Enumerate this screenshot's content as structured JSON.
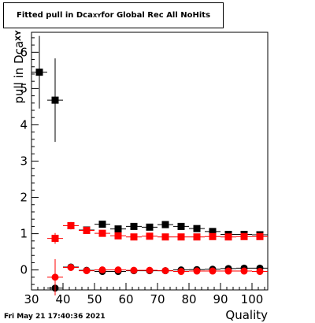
{
  "title": {
    "prefix": "Fitted pull in Dca",
    "subscript": "XY",
    "suffix": " for Global Rec All NoHits"
  },
  "timestamp": "Fri May 21 17:40:36 2021",
  "chart_data": {
    "type": "scatter",
    "title": "Fitted pull in Dca_XY for Global Rec All NoHits",
    "xlabel": "Quality",
    "ylabel_main": "pull in Dca",
    "ylabel_sub": "XY",
    "xlim": [
      30,
      105
    ],
    "ylim": [
      -0.55,
      6.55
    ],
    "x_ticks": [
      30,
      40,
      50,
      60,
      70,
      80,
      90,
      100
    ],
    "y_ticks": [
      0,
      1,
      2,
      3,
      4,
      5,
      6
    ],
    "grid": false,
    "series": [
      {
        "color": "#000000",
        "marker": "square",
        "x": [
          32.5,
          37.5,
          42.5,
          47.5,
          52.5,
          57.5,
          62.5,
          67.5,
          72.5,
          77.5,
          82.5,
          87.5,
          92.5,
          97.5,
          102.5
        ],
        "y": [
          5.45,
          4.68,
          1.22,
          1.1,
          1.26,
          1.13,
          1.2,
          1.18,
          1.25,
          1.2,
          1.14,
          1.06,
          0.98,
          0.98,
          0.97
        ],
        "err": [
          1.0,
          1.15,
          0.1,
          0.06,
          0.05,
          0.05,
          0.04,
          0.04,
          0.04,
          0.04,
          0.04,
          0.04,
          0.03,
          0.03,
          0.03
        ]
      },
      {
        "color": "#ff0000",
        "marker": "square",
        "x": [
          37.5,
          42.5,
          47.5,
          52.5,
          57.5,
          62.5,
          67.5,
          72.5,
          77.5,
          82.5,
          87.5,
          92.5,
          97.5,
          102.5
        ],
        "y": [
          0.87,
          1.22,
          1.09,
          1.01,
          0.94,
          0.91,
          0.93,
          0.91,
          0.91,
          0.91,
          0.92,
          0.91,
          0.92,
          0.92
        ],
        "err": [
          0.15,
          0.1,
          0.06,
          0.05,
          0.05,
          0.04,
          0.04,
          0.04,
          0.04,
          0.04,
          0.04,
          0.03,
          0.03,
          0.03
        ]
      },
      {
        "color": "#000000",
        "marker": "circle",
        "x": [
          37.5,
          42.5,
          47.5,
          52.5,
          57.5,
          62.5,
          67.5,
          72.5,
          77.5,
          82.5,
          87.5,
          92.5,
          97.5,
          102.5
        ],
        "y": [
          -0.5,
          0.08,
          -0.01,
          -0.04,
          -0.04,
          -0.02,
          -0.02,
          -0.02,
          0.0,
          0.01,
          0.02,
          0.04,
          0.05,
          0.05
        ],
        "err": [
          0.2,
          0.06,
          0.04,
          0.04,
          0.03,
          0.03,
          0.03,
          0.03,
          0.03,
          0.03,
          0.03,
          0.03,
          0.03,
          0.03
        ]
      },
      {
        "color": "#ff0000",
        "marker": "circle",
        "x": [
          37.5,
          42.5,
          47.5,
          52.5,
          57.5,
          62.5,
          67.5,
          72.5,
          77.5,
          82.5,
          87.5,
          92.5,
          97.5,
          102.5
        ],
        "y": [
          -0.2,
          0.07,
          -0.02,
          0.0,
          0.0,
          -0.01,
          -0.01,
          -0.02,
          -0.04,
          -0.03,
          -0.03,
          -0.03,
          -0.03,
          -0.04
        ],
        "err": [
          0.5,
          0.05,
          0.04,
          0.03,
          0.03,
          0.03,
          0.03,
          0.03,
          0.03,
          0.03,
          0.03,
          0.03,
          0.03,
          0.03
        ]
      }
    ]
  }
}
